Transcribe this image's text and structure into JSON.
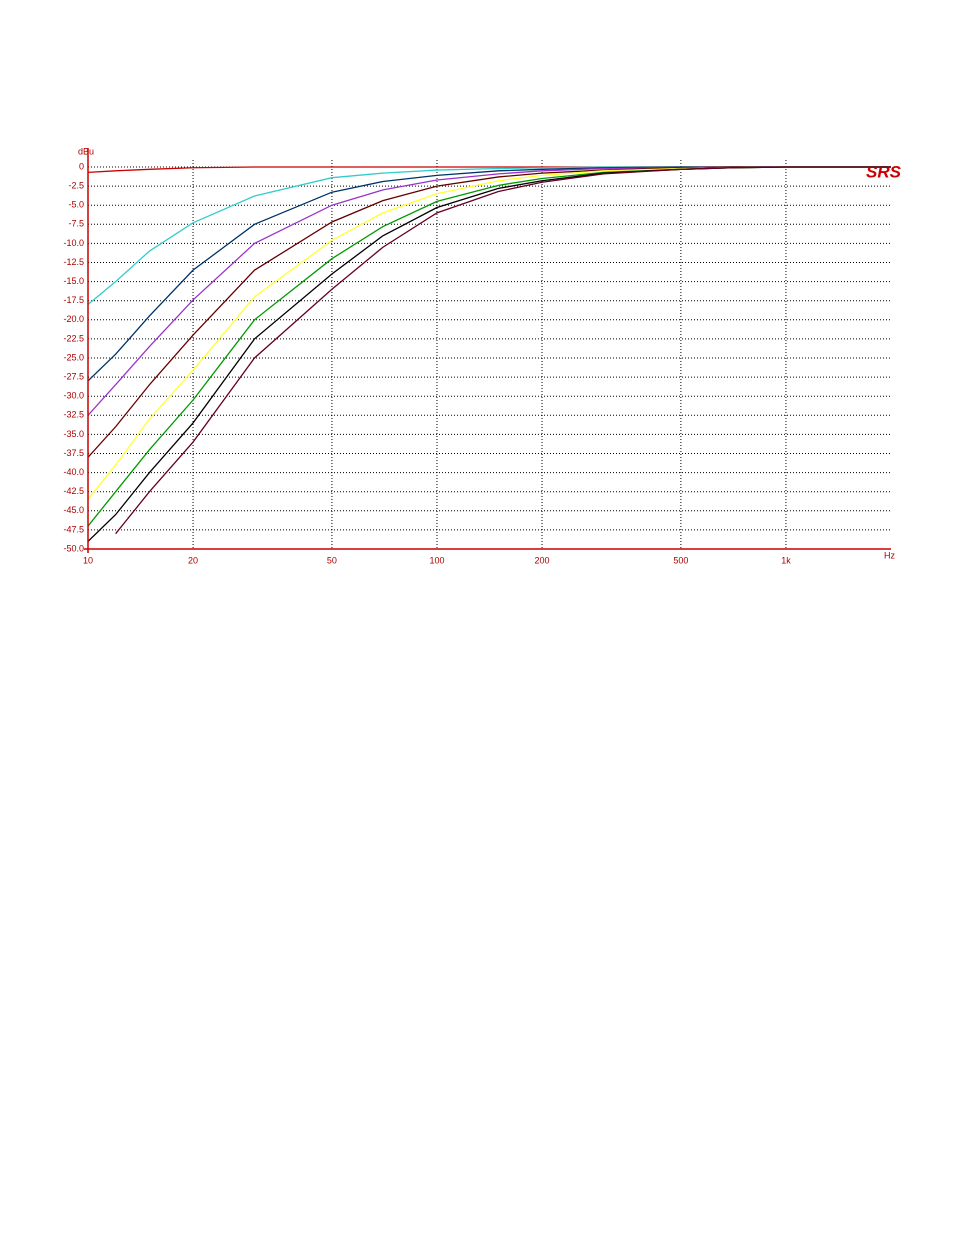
{
  "chart_data": {
    "type": "line",
    "y_label": "dBu",
    "x_label": "Hz",
    "logo": "SRS",
    "x_log": true,
    "grid": true,
    "xlim": [
      10,
      2000
    ],
    "xticks": [
      10,
      20,
      50,
      100,
      200,
      500,
      {
        "value": 1000,
        "label": "1k"
      }
    ],
    "ylim": [
      -50,
      0
    ],
    "yticks": [
      0,
      -2.5,
      {
        "value": -5,
        "label": "-5.0"
      },
      -7.5,
      {
        "value": -10,
        "label": "-10.0"
      },
      -12.5,
      {
        "value": -15,
        "label": "-15.0"
      },
      -17.5,
      {
        "value": -20,
        "label": "-20.0"
      },
      -22.5,
      {
        "value": -25,
        "label": "-25.0"
      },
      -27.5,
      {
        "value": -30,
        "label": "-30.0"
      },
      -32.5,
      {
        "value": -35,
        "label": "-35.0"
      },
      -37.5,
      {
        "value": -40,
        "label": "-40.0"
      },
      -42.5,
      {
        "value": -45,
        "label": "-45.0"
      },
      -47.5,
      {
        "value": -50,
        "label": "-50.0"
      }
    ],
    "x": [
      10,
      12,
      15,
      20,
      30,
      50,
      70,
      100,
      150,
      200,
      300,
      500,
      700,
      1000,
      2000
    ],
    "series": [
      {
        "color": "#cc0000",
        "values": [
          -0.7,
          -0.5,
          -0.3,
          -0.1,
          0,
          0,
          0,
          0,
          0,
          0,
          0,
          0,
          0,
          0,
          0
        ]
      },
      {
        "color": "#33cccc",
        "values": [
          -18,
          -15,
          -11,
          -7.3,
          -3.8,
          -1.4,
          -0.8,
          -0.4,
          -0.2,
          -0.1,
          0,
          0,
          0,
          0,
          0
        ]
      },
      {
        "color": "#003366",
        "values": [
          -28,
          -24.5,
          -19.5,
          -13.5,
          -7.5,
          -3.3,
          -1.9,
          -1.1,
          -0.5,
          -0.3,
          -0.1,
          0,
          0,
          0,
          0
        ]
      },
      {
        "color": "#9933cc",
        "values": [
          -32.5,
          -28.5,
          -23.5,
          -17.4,
          -10,
          -5,
          -3,
          -1.7,
          -0.9,
          -0.5,
          -0.2,
          -0.1,
          0,
          0,
          0
        ]
      },
      {
        "color": "#660000",
        "values": [
          -38,
          -34,
          -28.5,
          -22,
          -13.5,
          -7.2,
          -4.4,
          -2.5,
          -1.3,
          -0.8,
          -0.4,
          -0.1,
          0,
          0,
          0
        ]
      },
      {
        "color": "#ffff33",
        "values": [
          -43.5,
          -39,
          -33,
          -26.6,
          -17,
          -9.6,
          -6,
          -3.5,
          -1.8,
          -1.1,
          -0.5,
          -0.2,
          -0.1,
          0,
          0
        ]
      },
      {
        "color": "#009900",
        "values": [
          -47,
          -42.5,
          -37,
          -30.5,
          -20,
          -12,
          -7.8,
          -4.5,
          -2.4,
          -1.5,
          -0.7,
          -0.3,
          -0.1,
          0,
          0
        ]
      },
      {
        "color": "#000000",
        "values": [
          -49,
          -45.5,
          -40,
          -33.5,
          -22.5,
          -14,
          -9,
          -5.3,
          -2.8,
          -1.8,
          -0.8,
          -0.3,
          -0.1,
          0,
          0
        ]
      },
      {
        "color": "#660022",
        "values": [
          null,
          -48,
          -42.5,
          -36,
          -25,
          -16,
          -10.5,
          -6,
          -3.2,
          -2,
          -0.9,
          -0.3,
          -0.1,
          0,
          0
        ]
      }
    ]
  }
}
